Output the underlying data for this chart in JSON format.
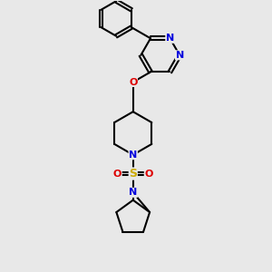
{
  "bg_color": "#e8e8e8",
  "bond_color": "#000000",
  "N_color": "#0000dd",
  "O_color": "#dd0000",
  "S_color": "#ccaa00",
  "font_size": 8.0,
  "line_width": 1.5,
  "xlim": [
    0,
    10
  ],
  "ylim": [
    0,
    10
  ],
  "dpi": 100,
  "figsize": [
    3.0,
    3.0
  ]
}
